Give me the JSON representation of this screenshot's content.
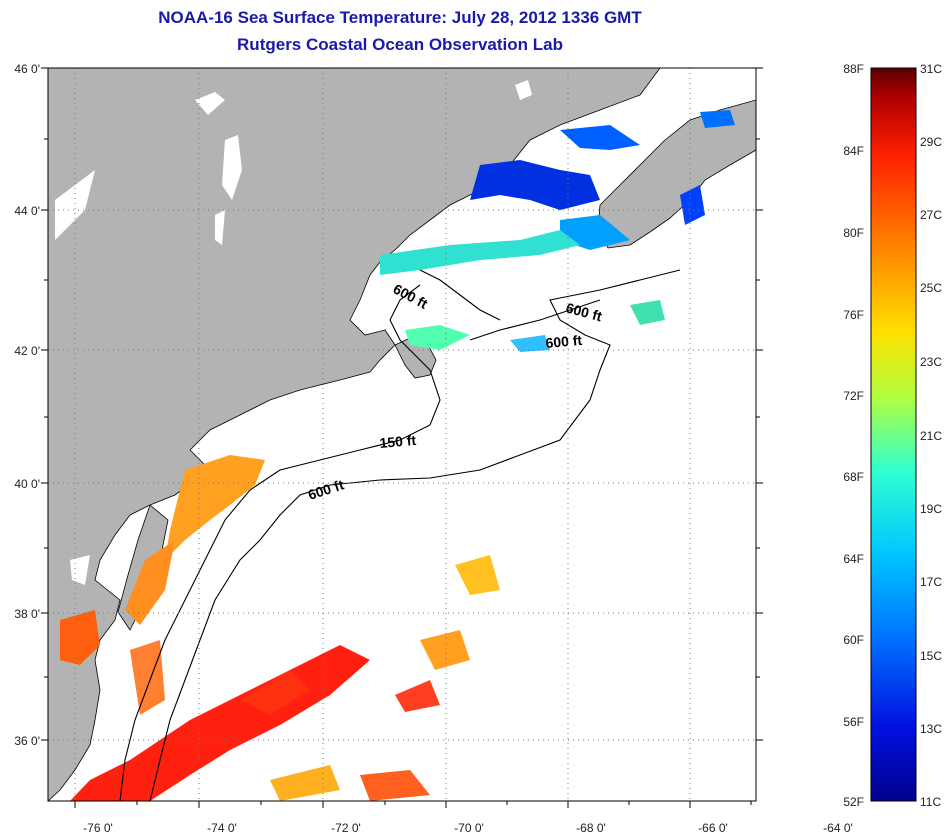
{
  "title": "NOAA-16 Sea Surface Temperature:  July 28, 2012 1336 GMT",
  "subtitle": "Rutgers Coastal Ocean Observation Lab",
  "map": {
    "lon_ticks": [
      "-76 0'",
      "-74 0'",
      "-72 0'",
      "-70 0'",
      "-68 0'",
      "-66 0'",
      "-64 0'"
    ],
    "lat_ticks": [
      "46 0'",
      "44 0'",
      "42 0'",
      "40 0'",
      "38 0'",
      "36 0'"
    ],
    "contour_labels": [
      "600 ft",
      "600 ft",
      "600 ft",
      "150 ft",
      "600 ft"
    ],
    "land_color": "#b3b3b3",
    "ocean_color": "#ffffff"
  },
  "colorbar": {
    "fahrenheit_labels": [
      "88F",
      "84F",
      "80F",
      "76F",
      "72F",
      "68F",
      "64F",
      "60F",
      "56F",
      "52F"
    ],
    "celsius_labels": [
      "31C",
      "29C",
      "27C",
      "25C",
      "23C",
      "21C",
      "19C",
      "17C",
      "15C",
      "13C",
      "11C"
    ],
    "colors": [
      "#5a0000",
      "#b00000",
      "#ff2000",
      "#ff8000",
      "#ffe000",
      "#b0ff40",
      "#30ffd0",
      "#00a0ff",
      "#0030ff",
      "#00008c"
    ]
  }
}
